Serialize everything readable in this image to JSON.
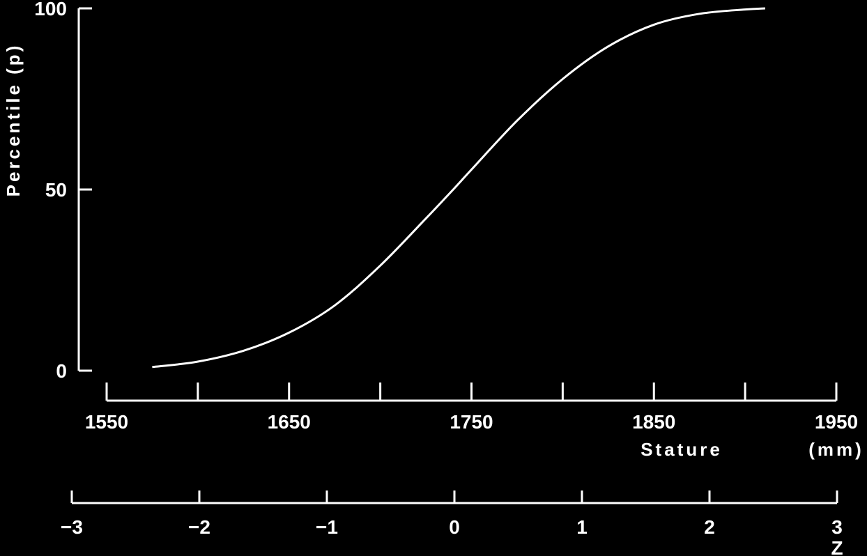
{
  "chart_data": {
    "type": "line",
    "ylabel": "Percentile (p)",
    "xlabel": "Stature",
    "x_unit": "(mm)",
    "z_label": "Z",
    "ylim": [
      0,
      100
    ],
    "xlim": [
      1550,
      1950
    ],
    "zlim": [
      -3,
      3
    ],
    "y_ticks": [
      0,
      50,
      100
    ],
    "x_ticks": [
      1550,
      1600,
      1650,
      1700,
      1750,
      1800,
      1850,
      1900,
      1950
    ],
    "x_tick_labels": [
      "1550",
      "1650",
      "1750",
      "1850",
      "1950"
    ],
    "z_ticks": [
      -3,
      -2,
      -1,
      0,
      1,
      2,
      3
    ],
    "z_tick_labels": [
      "−3",
      "−2",
      "−1",
      "0",
      "1",
      "2",
      "3"
    ],
    "grid": false,
    "series": [
      {
        "x": [
          1575,
          1600,
          1625,
          1650,
          1675,
          1700,
          1725,
          1740,
          1750,
          1775,
          1800,
          1825,
          1850,
          1875,
          1900,
          1911
        ],
        "y": [
          1,
          2.5,
          5.5,
          10.5,
          18,
          29,
          42,
          50,
          55.5,
          69,
          80.5,
          89.5,
          95.5,
          98.5,
          99.7,
          100
        ]
      }
    ],
    "colors": {
      "background": "#000000",
      "foreground": "#ffffff"
    }
  }
}
